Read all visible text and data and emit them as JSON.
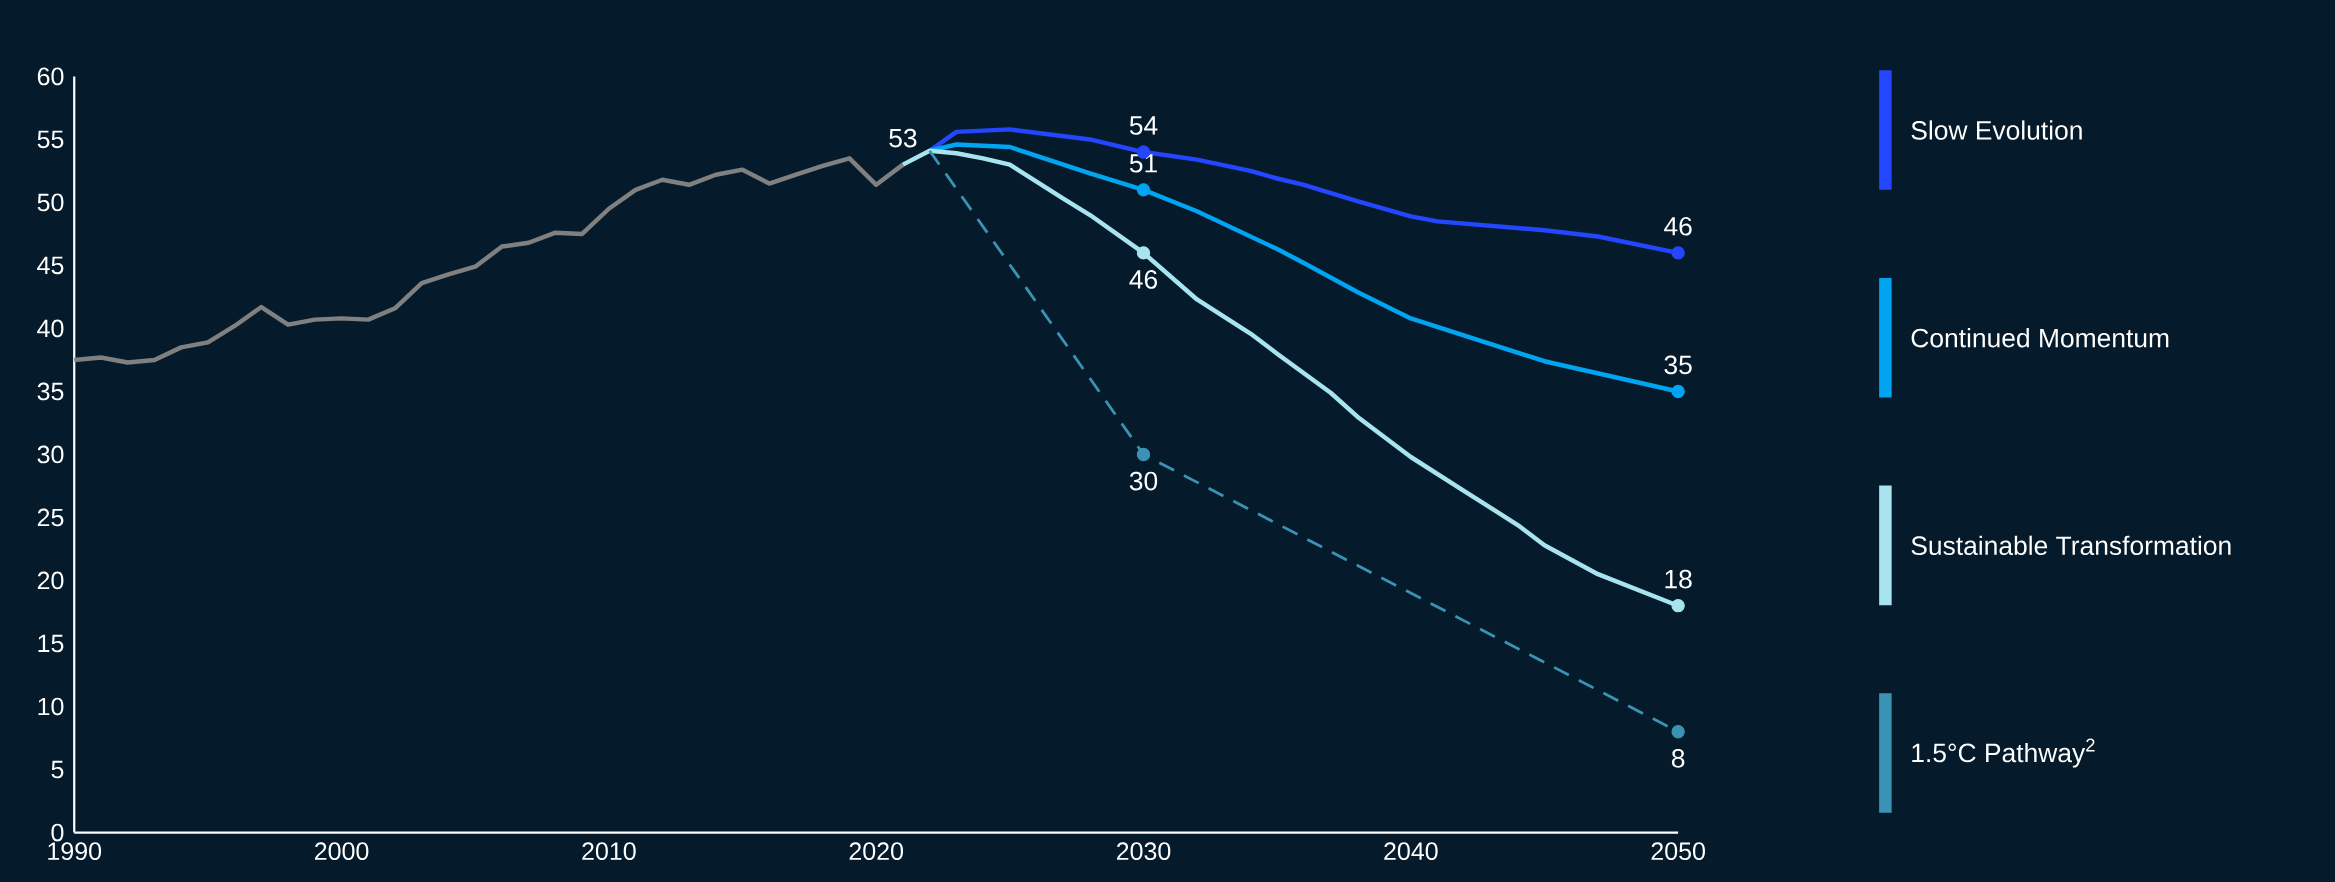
{
  "chart_data": {
    "type": "line",
    "xlim": [
      1990,
      2050
    ],
    "xticks": [
      1990,
      2000,
      2010,
      2020,
      2030,
      2040,
      2050
    ],
    "ylim": [
      0,
      60
    ],
    "yticks": [
      0,
      5,
      10,
      15,
      20,
      25,
      30,
      35,
      40,
      45,
      50,
      55,
      60
    ],
    "legend": "right",
    "series": [
      {
        "color": "#808080",
        "x": [
          1990,
          1991,
          1992,
          1993,
          1994,
          1995,
          1996,
          1997,
          1998,
          1999,
          2000,
          2001,
          2002,
          2003,
          2004,
          2005,
          2006,
          2007,
          2008,
          2009,
          2010,
          2011,
          2012,
          2013,
          2014,
          2015,
          2016,
          2017,
          2018,
          2019,
          2020,
          2021
        ],
        "values": [
          37.5,
          37.7,
          37.3,
          37.5,
          38.5,
          38.9,
          40.2,
          41.7,
          40.3,
          40.7,
          40.8,
          40.7,
          41.6,
          43.6,
          44.3,
          44.9,
          46.5,
          46.8,
          47.6,
          47.5,
          49.5,
          51.0,
          51.8,
          51.4,
          52.2,
          52.6,
          51.5,
          52.2,
          52.9,
          53.5,
          51.4,
          53
        ],
        "value_labels": [
          null,
          null,
          null,
          null,
          null,
          null,
          null,
          null,
          null,
          null,
          null,
          null,
          null,
          null,
          null,
          null,
          null,
          null,
          null,
          null,
          null,
          null,
          null,
          null,
          null,
          null,
          null,
          null,
          null,
          null,
          null,
          "53"
        ],
        "marker": "none"
      },
      {
        "name": "Slow Evolution",
        "color": "#2446ff",
        "x": [
          2022,
          2023,
          2025,
          2028,
          2030,
          2032,
          2034,
          2035,
          2036,
          2038,
          2040,
          2041,
          2045,
          2047,
          2050
        ],
        "values": [
          54.1,
          55.6,
          55.8,
          55.0,
          54,
          53.4,
          52.5,
          51.9,
          51.4,
          50.1,
          48.9,
          48.5,
          47.8,
          47.3,
          46
        ],
        "value_labels": [
          null,
          null,
          null,
          null,
          "54",
          null,
          null,
          null,
          null,
          null,
          null,
          null,
          null,
          null,
          "46"
        ]
      },
      {
        "name": "Continued Momentum",
        "color": "#00a4f0",
        "x": [
          2022,
          2023,
          2025,
          2028,
          2030,
          2032,
          2035,
          2036,
          2038,
          2040,
          2045,
          2050
        ],
        "values": [
          54.1,
          54.6,
          54.4,
          52.3,
          51,
          49.3,
          46.3,
          45.2,
          42.9,
          40.8,
          37.4,
          35
        ],
        "value_labels": [
          null,
          null,
          null,
          null,
          "51",
          null,
          null,
          null,
          null,
          null,
          null,
          "35"
        ]
      },
      {
        "name": "Sustainable Transformation",
        "color": "#a8e4ef",
        "x": [
          2021,
          2022,
          2023,
          2024,
          2025,
          2027,
          2028,
          2030,
          2032,
          2034,
          2035,
          2037,
          2038,
          2040,
          2042,
          2044,
          2045,
          2047,
          2050
        ],
        "values": [
          53,
          54.1,
          53.9,
          53.5,
          53.0,
          50.3,
          49.0,
          46,
          42.3,
          39.6,
          38.0,
          34.9,
          33.0,
          29.8,
          27.1,
          24.4,
          22.8,
          20.5,
          18
        ],
        "value_labels": [
          null,
          null,
          null,
          null,
          null,
          null,
          null,
          "46",
          null,
          null,
          null,
          null,
          null,
          null,
          null,
          null,
          null,
          null,
          "18"
        ]
      },
      {
        "name": "1.5°C Pathway$^{2}$",
        "color": "#3a93b5",
        "x": [
          2022,
          2030,
          2050
        ],
        "values": [
          54.1,
          30,
          8
        ],
        "value_labels": [
          null,
          "30",
          "8"
        ],
        "marker": "circle",
        "line_style": "dashed"
      }
    ]
  }
}
